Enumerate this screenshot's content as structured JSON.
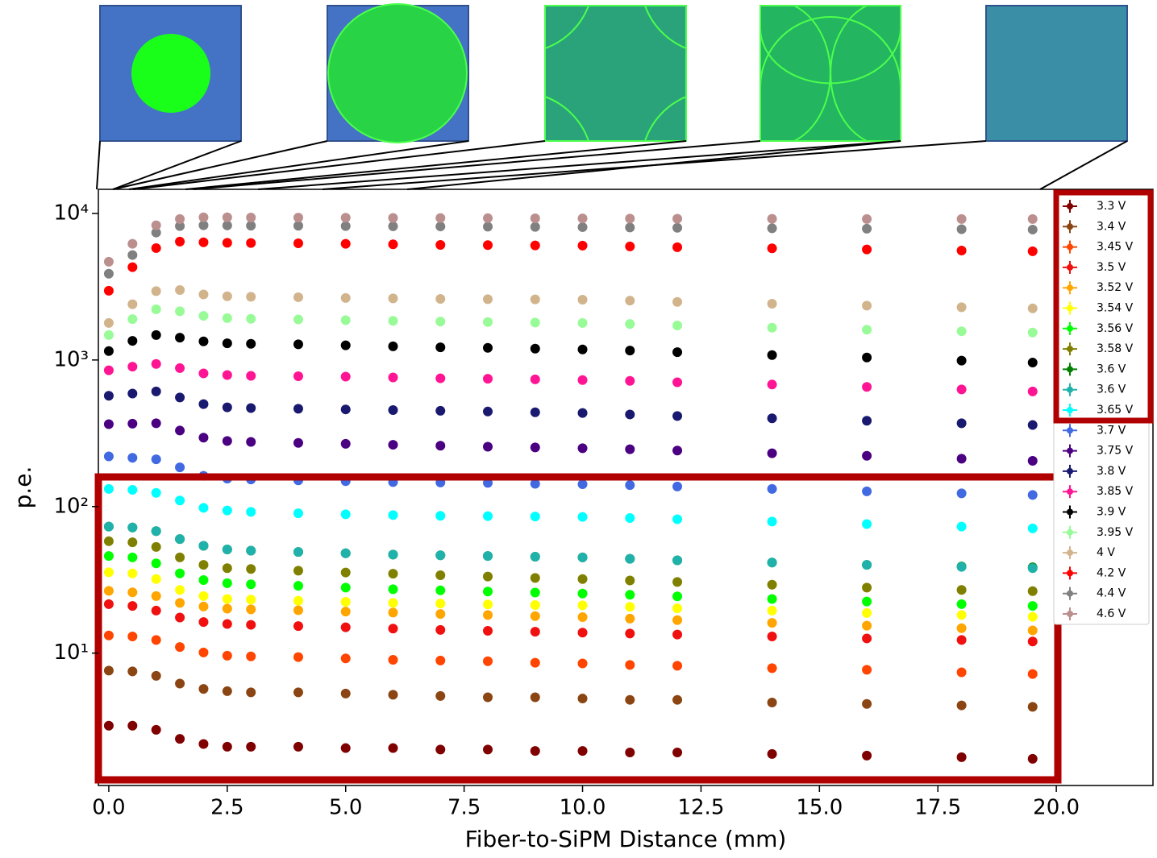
{
  "chart_data": {
    "type": "scatter",
    "log_y": true,
    "xlabel": "Fiber-to-SiPM Distance (mm)",
    "ylabel": "p.e.",
    "xlim": [
      -0.22,
      22.04
    ],
    "ylim": [
      1.25,
      14600
    ],
    "xticks": [
      {
        "value": 0,
        "label": "0.0"
      },
      2.5,
      {
        "value": 5,
        "label": "5.0"
      },
      7.5,
      {
        "value": 10,
        "label": "10.0"
      },
      12.5,
      {
        "value": 15,
        "label": "15.0"
      },
      17.5,
      {
        "value": 20,
        "label": "20.0"
      }
    ],
    "yticks": [
      {
        "value": 10,
        "label": "10¹"
      },
      {
        "value": 100,
        "label": "10²"
      },
      {
        "value": 1000,
        "label": "10³"
      },
      {
        "value": 10000,
        "label": "10⁴"
      }
    ],
    "legend": "upper right",
    "x": [
      0,
      0.5,
      1,
      1.5,
      2,
      2.5,
      3,
      4,
      5,
      6,
      7,
      8,
      9,
      10,
      11,
      12,
      14,
      16,
      18,
      19.5
    ],
    "series": [
      {
        "name": "3.3 V",
        "color": "#800000",
        "values": [
          3.2,
          3.2,
          3.0,
          2.6,
          2.4,
          2.3,
          2.3,
          2.3,
          2.25,
          2.25,
          2.2,
          2.2,
          2.15,
          2.15,
          2.1,
          2.1,
          2.05,
          2.0,
          1.95,
          1.9
        ]
      },
      {
        "name": "3.4 V",
        "color": "#8b4513",
        "values": [
          7.6,
          7.5,
          7.0,
          6.2,
          5.7,
          5.5,
          5.4,
          5.4,
          5.3,
          5.2,
          5.1,
          5.0,
          5.0,
          4.9,
          4.8,
          4.8,
          4.6,
          4.5,
          4.4,
          4.3
        ]
      },
      {
        "name": "3.45 V",
        "color": "#ff4500",
        "values": [
          13.2,
          13.0,
          12.3,
          11.0,
          10.1,
          9.6,
          9.5,
          9.4,
          9.2,
          9.0,
          8.9,
          8.8,
          8.6,
          8.5,
          8.3,
          8.2,
          7.9,
          7.7,
          7.4,
          7.2
        ]
      },
      {
        "name": "3.5 V",
        "color": "#f01010",
        "values": [
          21.6,
          21.0,
          19.5,
          17.5,
          16.3,
          15.8,
          15.6,
          15.3,
          15.0,
          14.7,
          14.4,
          14.2,
          14.0,
          13.8,
          13.6,
          13.4,
          13.0,
          12.6,
          12.3,
          12.0
        ]
      },
      {
        "name": "3.52 V",
        "color": "#ffa500",
        "values": [
          26.6,
          26.0,
          24.5,
          22.0,
          20.8,
          20.1,
          19.9,
          19.6,
          19.2,
          18.9,
          18.5,
          18.2,
          17.9,
          17.6,
          17.2,
          16.8,
          16.1,
          15.4,
          14.8,
          14.3
        ]
      },
      {
        "name": "3.54 V",
        "color": "#ffff00",
        "values": [
          35.6,
          35.0,
          32.0,
          27.0,
          24.5,
          23.4,
          23.2,
          22.8,
          22.4,
          22.0,
          21.8,
          21.5,
          21.3,
          21.2,
          20.7,
          20.2,
          19.5,
          18.8,
          18.2,
          17.7
        ]
      },
      {
        "name": "3.56 V",
        "color": "#00ff00",
        "values": [
          46,
          45,
          41,
          35,
          31.5,
          30,
          29.5,
          28.8,
          28,
          27.3,
          26.8,
          26.3,
          25.9,
          25.5,
          25,
          24.4,
          23.4,
          22.5,
          21.6,
          21
        ]
      },
      {
        "name": "3.58 V",
        "color": "#808000",
        "values": [
          58,
          57,
          53,
          45,
          40,
          38,
          37.5,
          36.5,
          35.5,
          34.8,
          34,
          33.3,
          32.6,
          32,
          31.3,
          30.6,
          29.3,
          28,
          27,
          26.5
        ]
      },
      {
        "name": "3.6 V",
        "color": "#008000",
        "values": [
          73,
          72,
          68,
          60,
          54,
          51,
          50,
          49,
          48,
          47,
          46.5,
          46,
          45.5,
          45,
          44,
          43,
          41.5,
          40,
          39,
          38.5
        ]
      },
      {
        "name": "3.6 V",
        "color": "#20b2aa",
        "values": [
          73,
          72,
          68,
          60,
          54,
          51,
          50,
          49,
          48,
          47,
          46.5,
          46,
          45.5,
          45,
          44,
          43,
          41.5,
          40,
          38.8,
          38
        ]
      },
      {
        "name": "3.65 V",
        "color": "#00ffff",
        "values": [
          132,
          130,
          124,
          110,
          98,
          94,
          92,
          90,
          88.5,
          87.5,
          86.5,
          86,
          85.5,
          85,
          83.5,
          82,
          79,
          76,
          73,
          71
        ]
      },
      {
        "name": "3.7 V",
        "color": "#4169e1",
        "values": [
          220,
          215,
          210,
          185,
          162,
          155,
          153,
          151,
          149,
          147,
          146,
          145,
          143,
          142,
          140,
          137,
          132,
          127,
          123,
          120
        ]
      },
      {
        "name": "3.75 V",
        "color": "#4b0082",
        "values": [
          365,
          368,
          370,
          330,
          295,
          280,
          276,
          272,
          268,
          264,
          260,
          256,
          253,
          250,
          246,
          241,
          231,
          222,
          212,
          205
        ]
      },
      {
        "name": "3.8 V",
        "color": "#191970",
        "values": [
          570,
          590,
          610,
          555,
          500,
          475,
          470,
          465,
          460,
          455,
          450,
          445,
          440,
          435,
          425,
          415,
          400,
          385,
          370,
          360
        ]
      },
      {
        "name": "3.85 V",
        "color": "#ff1493",
        "values": [
          850,
          900,
          940,
          880,
          810,
          790,
          780,
          775,
          770,
          760,
          750,
          745,
          738,
          730,
          720,
          705,
          680,
          655,
          630,
          610
        ]
      },
      {
        "name": "3.9 V",
        "color": "#000000",
        "values": [
          1150,
          1350,
          1480,
          1420,
          1340,
          1300,
          1290,
          1280,
          1260,
          1240,
          1220,
          1210,
          1195,
          1180,
          1160,
          1130,
          1080,
          1040,
          990,
          960
        ]
      },
      {
        "name": "3.95 V",
        "color": "#98fb98",
        "values": [
          1480,
          1900,
          2220,
          2150,
          2000,
          1930,
          1910,
          1890,
          1870,
          1850,
          1830,
          1815,
          1800,
          1790,
          1760,
          1720,
          1660,
          1610,
          1570,
          1540
        ]
      },
      {
        "name": "4 V",
        "color": "#d2b48c",
        "values": [
          1790,
          2400,
          2950,
          3000,
          2800,
          2720,
          2700,
          2680,
          2650,
          2630,
          2610,
          2600,
          2590,
          2580,
          2540,
          2490,
          2420,
          2350,
          2290,
          2250
        ]
      },
      {
        "name": "4.2 V",
        "color": "#ff0000",
        "values": [
          2970,
          4300,
          5800,
          6420,
          6350,
          6300,
          6280,
          6250,
          6200,
          6150,
          6100,
          6080,
          6050,
          6030,
          5950,
          5880,
          5780,
          5680,
          5580,
          5520
        ]
      },
      {
        "name": "4.4 V",
        "color": "#808080",
        "values": [
          3880,
          5200,
          7400,
          8200,
          8300,
          8280,
          8250,
          8230,
          8200,
          8170,
          8150,
          8120,
          8090,
          8060,
          8020,
          7980,
          7920,
          7870,
          7800,
          7760
        ]
      },
      {
        "name": "4.6 V",
        "color": "#bc8f8f",
        "values": [
          4680,
          6200,
          8300,
          9150,
          9400,
          9400,
          9380,
          9360,
          9340,
          9320,
          9300,
          9280,
          9260,
          9240,
          9220,
          9200,
          9180,
          9160,
          9150,
          9150
        ]
      }
    ]
  }
}
